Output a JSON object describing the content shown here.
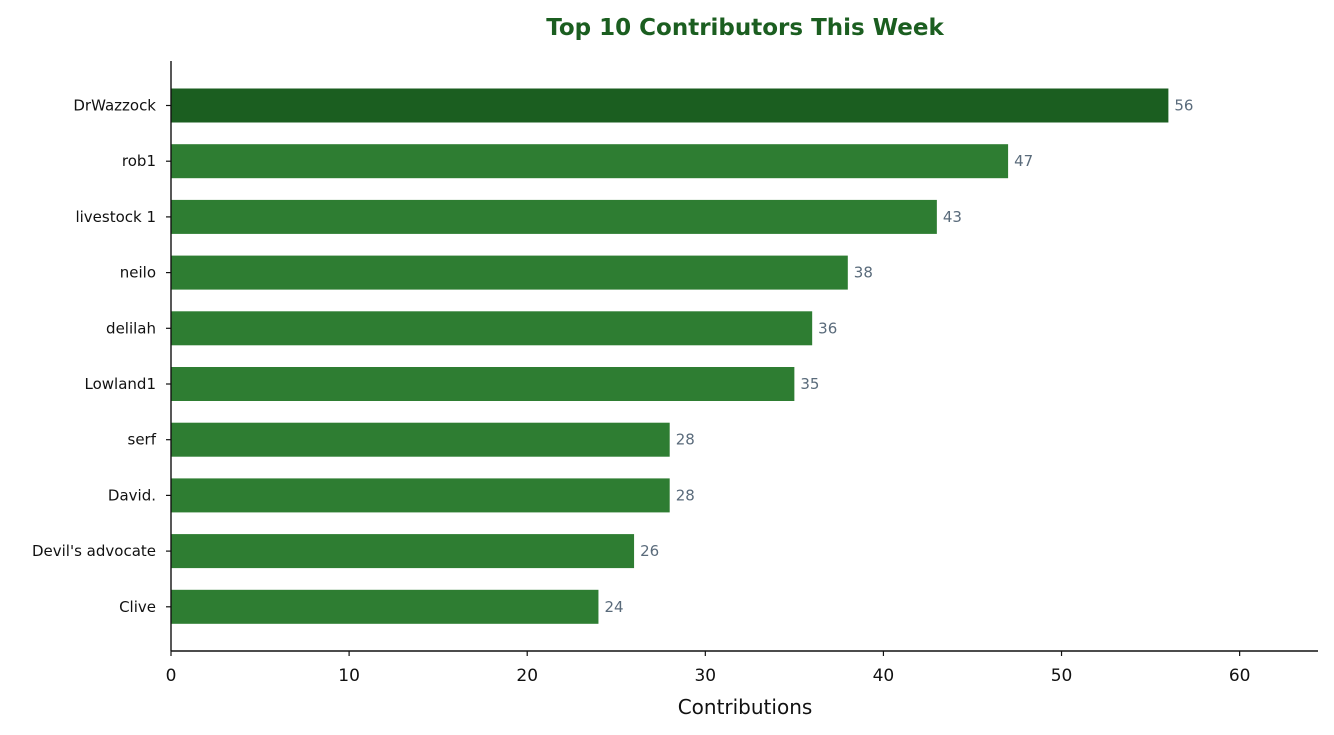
{
  "chart_data": {
    "type": "bar",
    "orientation": "horizontal",
    "title": "Top 10 Contributors This Week",
    "xlabel": "Contributions",
    "ylabel": "",
    "categories": [
      "DrWazzock",
      "rob1",
      "livestock 1",
      "neilo",
      "delilah",
      "Lowland1",
      "serf",
      "David.",
      "Devil's advocate",
      "Clive"
    ],
    "values": [
      56,
      47,
      43,
      38,
      36,
      35,
      28,
      28,
      26,
      24
    ],
    "data_labels": [
      "56",
      "47",
      "43",
      "38",
      "36",
      "35",
      "28",
      "28",
      "26",
      "24"
    ],
    "xlim": [
      0,
      64.4
    ],
    "xticks": [
      0,
      10,
      20,
      30,
      40,
      50,
      60
    ],
    "grid": false,
    "legend": "none",
    "colors": {
      "bar": "#2e7d32",
      "highlight_bar": "#1b5e20",
      "title": "#1b5e20",
      "value_label": "#5a6b7b",
      "axis": "#111111"
    }
  }
}
